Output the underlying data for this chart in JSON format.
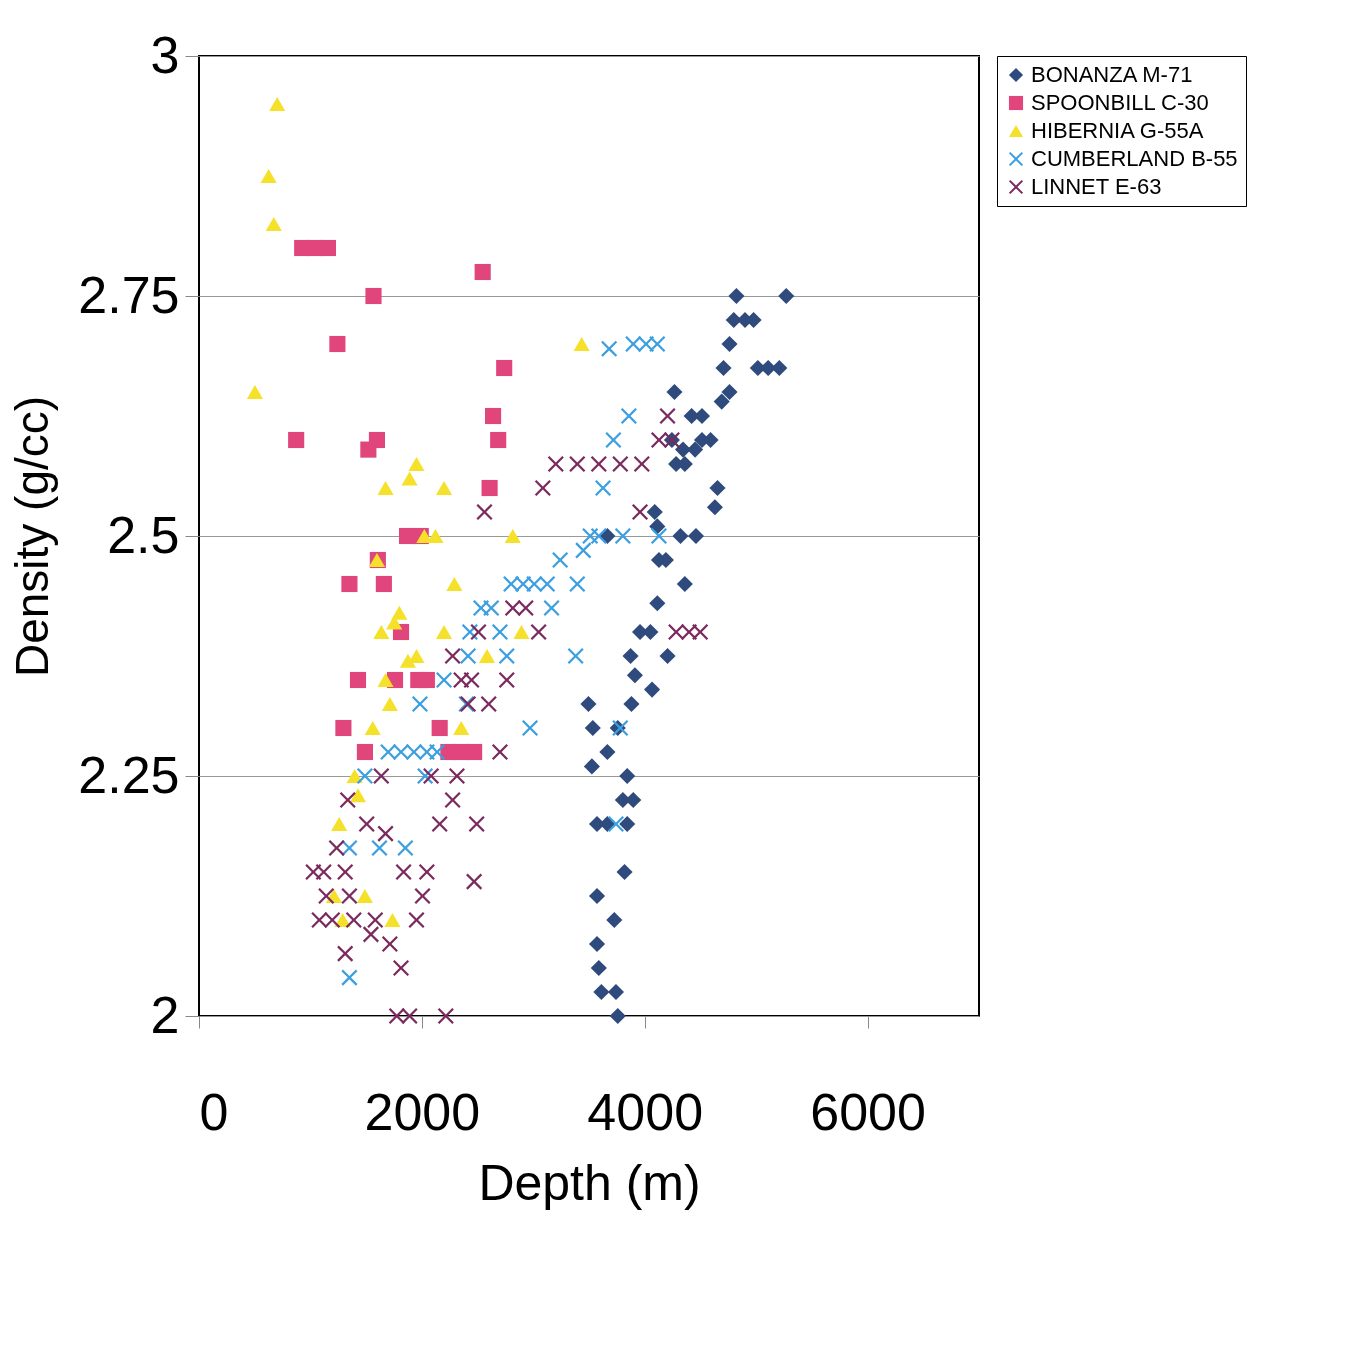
{
  "chart_data": {
    "type": "scatter",
    "xlabel": "Depth (m)",
    "ylabel": "Density (g/cc)",
    "xlim": [
      0,
      7000
    ],
    "xticks": [
      0,
      2000,
      4000,
      6000
    ],
    "ylim": [
      2,
      3
    ],
    "yticks": [
      2,
      2.25,
      2.5,
      2.75,
      3
    ],
    "grid": "y",
    "legend": "right",
    "series": [
      {
        "name": "BONANZA M-71",
        "color": "#2f4a7d",
        "marker": "diamond",
        "x": [
          5270,
          4823,
          4799,
          4900,
          4977,
          4761,
          4707,
          5015,
          5108,
          5208,
          4761,
          4267,
          4691,
          4421,
          4514,
          4244,
          4514,
          4591,
          4344,
          4452,
          4282,
          4360,
          4653,
          4630,
          4090,
          4113,
          3665,
          4321,
          4460,
          4128,
          4190,
          4360,
          4113,
          3958,
          4051,
          4205,
          3873,
          3912,
          4066,
          3881,
          3495,
          3534,
          3758,
          3665,
          3526,
          3843,
          3804,
          3897,
          3572,
          3665,
          3843,
          3819,
          3572,
          3727,
          3572,
          3588,
          3611,
          3742,
          3758
        ],
        "values": [
          2.75,
          2.75,
          2.725,
          2.725,
          2.725,
          2.7,
          2.675,
          2.675,
          2.675,
          2.675,
          2.65,
          2.65,
          2.64,
          2.625,
          2.625,
          2.6,
          2.6,
          2.6,
          2.59,
          2.59,
          2.575,
          2.575,
          2.55,
          2.53,
          2.525,
          2.51,
          2.5,
          2.5,
          2.5,
          2.475,
          2.475,
          2.45,
          2.43,
          2.4,
          2.4,
          2.375,
          2.375,
          2.355,
          2.34,
          2.325,
          2.325,
          2.3,
          2.3,
          2.275,
          2.26,
          2.25,
          2.225,
          2.225,
          2.2,
          2.2,
          2.2,
          2.15,
          2.125,
          2.1,
          2.075,
          2.05,
          2.025,
          2.025,
          2
        ]
      },
      {
        "name": "SPOONBILL C-30",
        "color": "#e0457b",
        "marker": "square",
        "x": [
          926,
          1042,
          1157,
          2546,
          1566,
          1242,
          2739,
          2639,
          872,
          1520,
          1597,
          2685,
          2608,
          1867,
          1990,
          1605,
          1350,
          1659,
          1813,
          1427,
          1759,
          1968,
          2045,
          1296,
          2160,
          1489,
          2238,
          2353,
          2469
        ],
        "values": [
          2.8,
          2.8,
          2.8,
          2.775,
          2.75,
          2.7,
          2.675,
          2.625,
          2.6,
          2.59,
          2.6,
          2.6,
          2.55,
          2.5,
          2.5,
          2.475,
          2.45,
          2.45,
          2.4,
          2.35,
          2.35,
          2.35,
          2.35,
          2.3,
          2.3,
          2.275,
          2.275,
          2.275,
          2.275
        ]
      },
      {
        "name": "HIBERNIA G-55A",
        "color": "#f5e02a",
        "marker": "triangle",
        "x": [
          702,
          625,
          671,
          502,
          3434,
          1952,
          1890,
          1674,
          2199,
          2022,
          2122,
          1597,
          2816,
          2292,
          1798,
          1752,
          1636,
          2199,
          2894,
          2585,
          1952,
          1875,
          1674,
          1713,
          2353,
          1559,
          1397,
          1427,
          1258,
          1211,
          1289,
          1489,
          1736
        ],
        "values": [
          2.95,
          2.875,
          2.825,
          2.65,
          2.7,
          2.575,
          2.56,
          2.55,
          2.55,
          2.5,
          2.5,
          2.475,
          2.5,
          2.45,
          2.42,
          2.41,
          2.4,
          2.4,
          2.4,
          2.375,
          2.375,
          2.37,
          2.35,
          2.325,
          2.3,
          2.3,
          2.25,
          2.23,
          2.2,
          2.125,
          2.1,
          2.125,
          2.1
        ]
      },
      {
        "name": "CUMBERLAND B-55",
        "color": "#3b9fe0",
        "marker": "cross",
        "x": [
          3681,
          3897,
          4012,
          4113,
          3858,
          3719,
          3626,
          3511,
          3588,
          3449,
          3804,
          4128,
          3241,
          3395,
          2801,
          2909,
          3009,
          3125,
          2531,
          2623,
          3164,
          2431,
          2701,
          2762,
          2415,
          2199,
          3380,
          2400,
          1983,
          2971,
          3781,
          1698,
          1813,
          1929,
          2045,
          2137,
          1489,
          2029,
          1350,
          1620,
          1852,
          3742,
          1350
        ],
        "values": [
          2.695,
          2.7,
          2.7,
          2.7,
          2.625,
          2.6,
          2.55,
          2.5,
          2.5,
          2.485,
          2.5,
          2.5,
          2.475,
          2.45,
          2.45,
          2.45,
          2.45,
          2.45,
          2.425,
          2.425,
          2.425,
          2.4,
          2.4,
          2.375,
          2.375,
          2.35,
          2.375,
          2.325,
          2.325,
          2.3,
          2.3,
          2.275,
          2.275,
          2.275,
          2.275,
          2.275,
          2.25,
          2.25,
          2.175,
          2.175,
          2.175,
          2.2,
          2.04
        ]
      },
      {
        "name": "LINNET E-63",
        "color": "#7b2a5e",
        "marker": "cross",
        "x": [
          4205,
          4128,
          4244,
          3202,
          3395,
          3588,
          3781,
          3974,
          3086,
          3958,
          2562,
          2816,
          2932,
          3048,
          2508,
          2276,
          2353,
          2446,
          2762,
          2600,
          2415,
          2701,
          1636,
          2083,
          2315,
          2276,
          1335,
          1505,
          2160,
          2492,
          1235,
          1674,
          1026,
          1119,
          1312,
          1836,
          2045,
          1142,
          1350,
          2006,
          2469,
          1080,
          1196,
          1389,
          1582,
          1952,
          1543,
          1713,
          1312,
          1813,
          1775,
          1890,
          2215,
          4282,
          4398,
          4498
        ],
        "values": [
          2.625,
          2.6,
          2.6,
          2.575,
          2.575,
          2.575,
          2.575,
          2.575,
          2.55,
          2.525,
          2.525,
          2.425,
          2.425,
          2.4,
          2.4,
          2.375,
          2.35,
          2.35,
          2.35,
          2.325,
          2.325,
          2.275,
          2.25,
          2.25,
          2.25,
          2.225,
          2.225,
          2.2,
          2.2,
          2.2,
          2.175,
          2.19,
          2.15,
          2.15,
          2.15,
          2.15,
          2.15,
          2.125,
          2.125,
          2.125,
          2.14,
          2.1,
          2.1,
          2.1,
          2.1,
          2.1,
          2.085,
          2.075,
          2.065,
          2.05,
          2,
          2,
          2,
          2.4,
          2.4,
          2.4
        ]
      }
    ]
  }
}
